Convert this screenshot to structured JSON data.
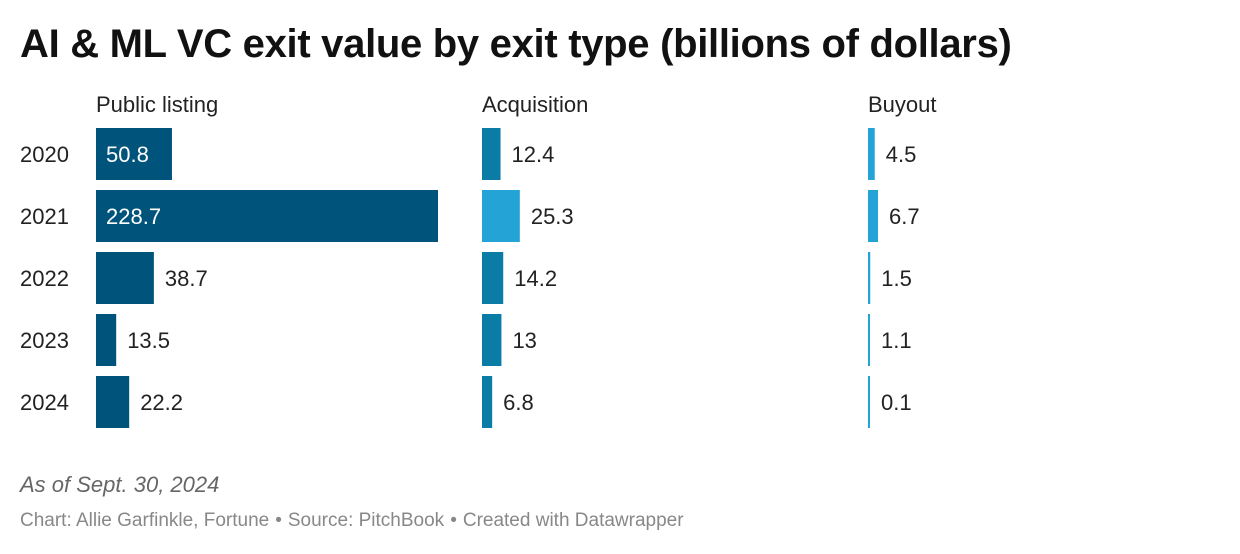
{
  "title": "AI & ML VC exit value by exit type (billions of dollars)",
  "note": "As of Sept. 30, 2024",
  "footer": {
    "chart_credit": "Chart: Allie Garfinkle, Fortune",
    "source": "Source: PitchBook",
    "tool": "Created with Datawrapper",
    "separator": "•"
  },
  "colors": {
    "public_listing": "#00547c",
    "acquisition": "#0a7ca5",
    "buyout": "#24a4d6",
    "label_dark": "#222222",
    "label_light": "#ffffff"
  },
  "chart_data": {
    "type": "bar",
    "orientation": "horizontal",
    "layout": "small-multiples",
    "categories": [
      "2020",
      "2021",
      "2022",
      "2023",
      "2024"
    ],
    "series": [
      {
        "name": "Public listing",
        "values": [
          50.8,
          228.7,
          38.7,
          13.5,
          22.2
        ]
      },
      {
        "name": "Acquisition",
        "values": [
          12.4,
          25.3,
          14.2,
          13,
          6.8
        ]
      },
      {
        "name": "Buyout",
        "values": [
          4.5,
          6.7,
          1.5,
          1.1,
          0.1
        ]
      }
    ],
    "xlim": [
      0,
      228.7
    ],
    "shared_scale": true,
    "highlighted_category": "2021",
    "grid": false,
    "legend": "none"
  }
}
